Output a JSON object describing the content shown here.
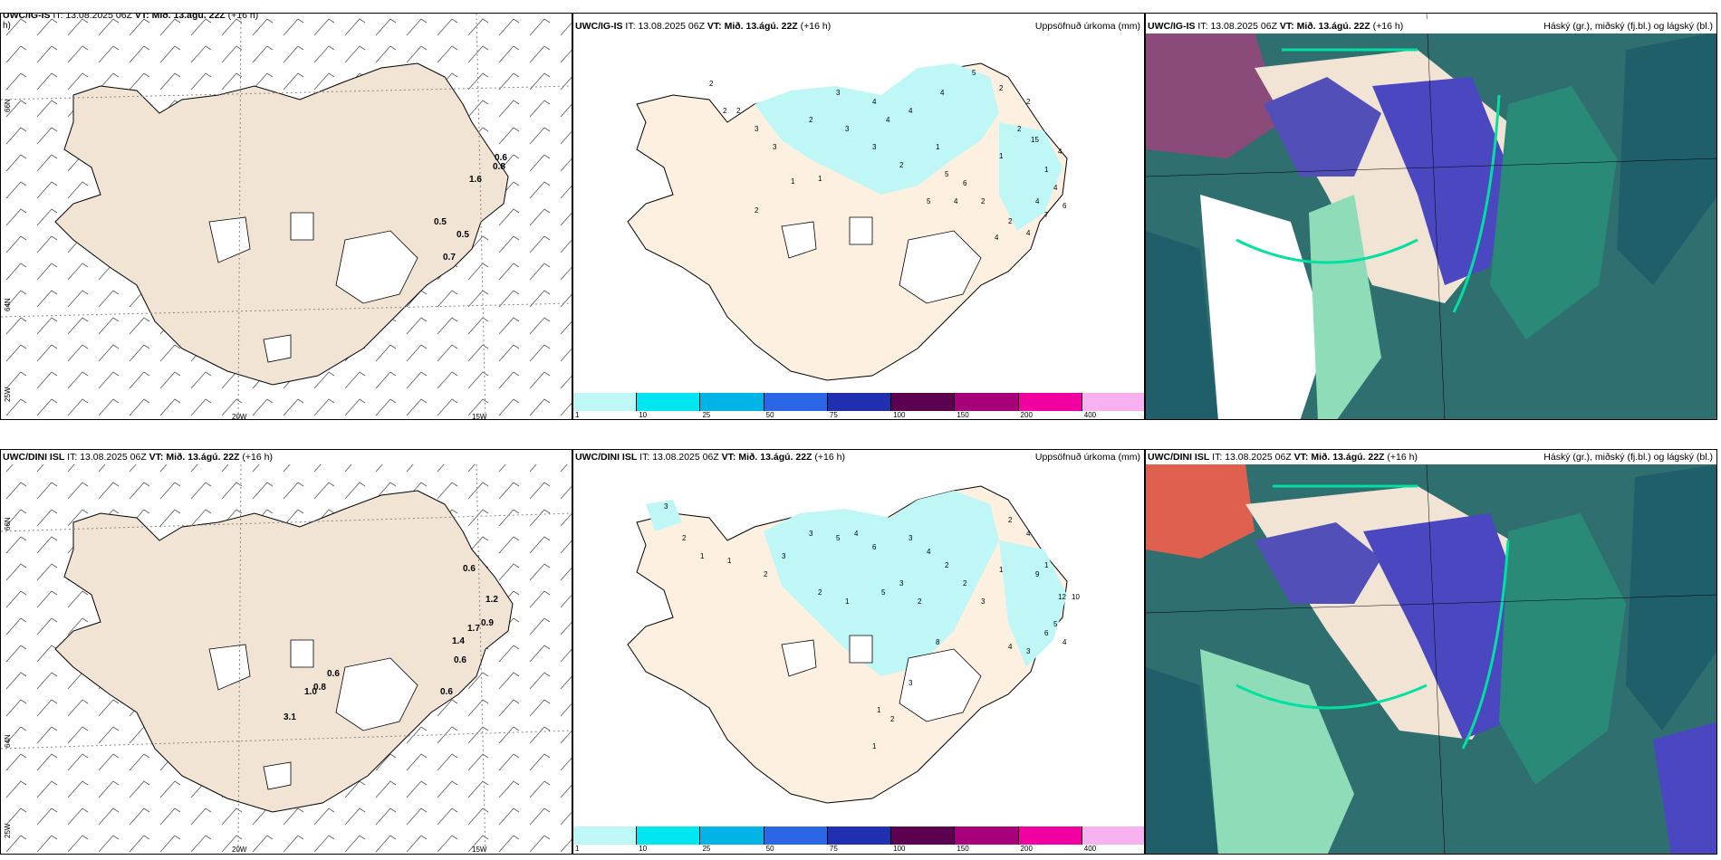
{
  "panels": [
    {
      "id": "p1",
      "model": "UWC/IG-IS",
      "it_label": "IT:",
      "it": "13.08.2025 06Z",
      "vt_label": "VT:",
      "vt": "Mið. 13.ágú. 22Z",
      "lead": "(+16 h)",
      "right": ""
    },
    {
      "id": "p2",
      "model": "UWC/IG-IS",
      "it_label": "IT:",
      "it": "13.08.2025 06Z",
      "vt_label": "VT:",
      "vt": "Mið. 13.ágú. 22Z",
      "lead": "(+16 h)",
      "right": "Uppsöfnuð úrkoma (mm)"
    },
    {
      "id": "p3",
      "model": "UWC/IG-IS",
      "it_label": "IT:",
      "it": "13.08.2025 06Z",
      "vt_label": "VT:",
      "vt": "Mið. 13.ágú. 22Z",
      "lead": "(+16 h)",
      "right": "Háský (gr.), miðský (fj.bl.) og lágský (bl.)"
    },
    {
      "id": "p4",
      "model": "UWC/DINI ISL",
      "it_label": "IT:",
      "it": "13.08.2025 06Z",
      "vt_label": "VT:",
      "vt": "Mið. 13.ágú. 22Z",
      "lead": "(+16 h)",
      "right": ""
    },
    {
      "id": "p5",
      "model": "UWC/DINI ISL",
      "it_label": "IT:",
      "it": "13.08.2025 06Z",
      "vt_label": "VT:",
      "vt": "Mið. 13.ágú. 22Z",
      "lead": "(+16 h)",
      "right": "Uppsöfnuð úrkoma (mm)"
    },
    {
      "id": "p6",
      "model": "UWC/DINI ISL",
      "it_label": "IT:",
      "it": "13.08.2025 06Z",
      "vt_label": "VT:",
      "vt": "Mið. 13.ágú. 22Z",
      "lead": "(+16 h)",
      "right": "Háský (gr.), miðský (fj.bl.) og lágský (bl.)"
    }
  ],
  "grid_labels": {
    "lat66": "66N",
    "lat64": "64N",
    "lon25": "25W",
    "lon20": "20W",
    "lon15": "15W",
    "h_wrap": "h)"
  },
  "colorbar": {
    "ticks": [
      "1",
      "10",
      "25",
      "50",
      "75",
      "100",
      "150",
      "200",
      "400"
    ],
    "colors": [
      "#bff7f7",
      "#00e6f0",
      "#00b4e6",
      "#2a66e6",
      "#1f2fb0",
      "#5c0050",
      "#a8007a",
      "#f000a0",
      "#f7b0f0"
    ]
  },
  "top_wind_values": [
    "0.6",
    "0.8",
    "1.6",
    "0.5",
    "0.5",
    "0.7"
  ],
  "bottom_wind_values": [
    "0.6",
    "1.2",
    "1.7",
    "0.9",
    "1.4",
    "0.6",
    "0.6",
    "0.6",
    "0.8",
    "1.0",
    "3.1"
  ],
  "top_precip_numbers": [
    "5",
    "2",
    "3",
    "4",
    "4",
    "4",
    "2",
    "3",
    "3",
    "2",
    "1",
    "4",
    "3",
    "3",
    "2",
    "5",
    "1",
    "5",
    "6",
    "4",
    "2",
    "1",
    "2",
    "2",
    "15",
    "1",
    "4",
    "4",
    "4",
    "7",
    "6",
    "4",
    "2",
    "4",
    "2",
    "2",
    "1",
    "2"
  ],
  "bottom_precip_numbers": [
    "3",
    "2",
    "1",
    "1",
    "2",
    "3",
    "3",
    "5",
    "4",
    "6",
    "3",
    "4",
    "2",
    "2",
    "1",
    "5",
    "3",
    "2",
    "2",
    "3",
    "1",
    "2",
    "4",
    "1",
    "9",
    "12",
    "10",
    "5",
    "6",
    "4",
    "3",
    "4",
    "8",
    "3",
    "1",
    "1",
    "2"
  ]
}
